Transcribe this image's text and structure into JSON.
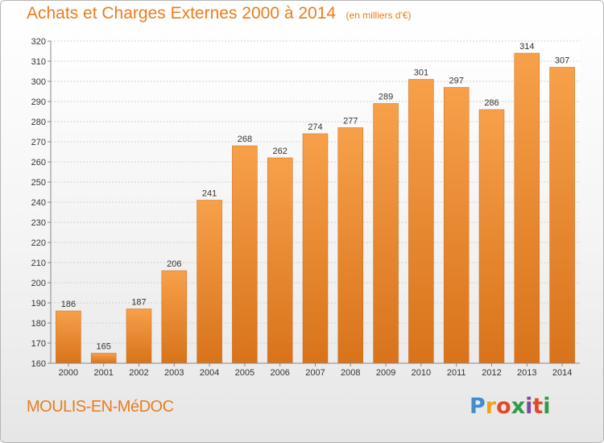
{
  "chart_data": {
    "type": "bar",
    "title": "Achats et Charges Externes 2000 à 2014",
    "subtitle": "(en milliers d'€)",
    "categories": [
      "2000",
      "2001",
      "2002",
      "2003",
      "2004",
      "2005",
      "2006",
      "2007",
      "2008",
      "2009",
      "2010",
      "2011",
      "2012",
      "2013",
      "2014"
    ],
    "values": [
      186,
      165,
      187,
      206,
      241,
      268,
      262,
      274,
      277,
      289,
      301,
      297,
      286,
      314,
      307
    ],
    "ylim": [
      160,
      320
    ],
    "yticks": [
      160,
      170,
      180,
      190,
      200,
      210,
      220,
      230,
      240,
      250,
      260,
      270,
      280,
      290,
      300,
      310,
      320
    ],
    "grid": true,
    "bar_color": "#f28c28",
    "bar_color_dark": "#d9731a"
  },
  "footer": {
    "commune": "MOULIS-EN-MéDOC",
    "logo": "Proxiti"
  }
}
